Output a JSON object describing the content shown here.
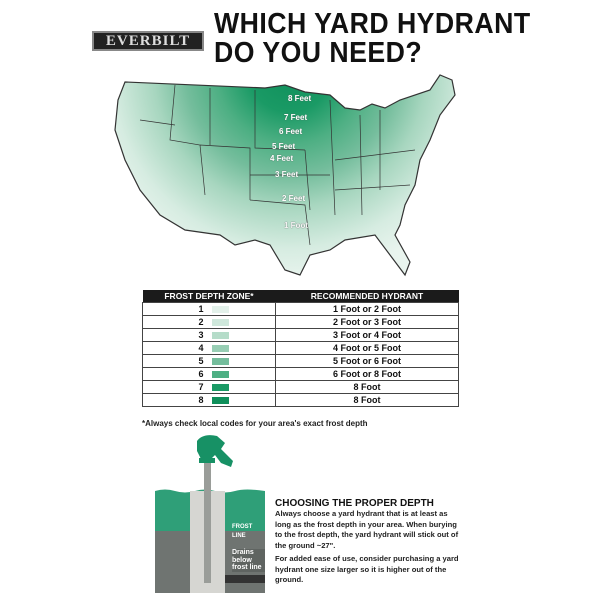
{
  "brand": {
    "logo_text": "EVERBILT"
  },
  "title": {
    "line1": "WHICH YARD HYDRANT",
    "line2": "DO YOU NEED?"
  },
  "map": {
    "labels": [
      "8 Feet",
      "7 Feet",
      "6 Feet",
      "5 Feet",
      "4 Feet",
      "3 Feet",
      "2 Feet",
      "1 Foot"
    ]
  },
  "table": {
    "headers": [
      "FROST DEPTH ZONE*",
      "RECOMMENDED HYDRANT"
    ],
    "rows": [
      {
        "zone": "1",
        "color": "#e3f1ea",
        "hydrant": "1 Foot or 2 Foot"
      },
      {
        "zone": "2",
        "color": "#cfe8dc",
        "hydrant": "2 Foot or 3 Foot"
      },
      {
        "zone": "3",
        "color": "#b5dcc9",
        "hydrant": "3 Foot or 4 Foot"
      },
      {
        "zone": "4",
        "color": "#97ceb4",
        "hydrant": "4 Foot or 5 Foot"
      },
      {
        "zone": "5",
        "color": "#74bd9c",
        "hydrant": "5 Foot or 6 Foot"
      },
      {
        "zone": "6",
        "color": "#4daf83",
        "hydrant": "6 Foot or 8 Foot"
      },
      {
        "zone": "7",
        "color": "#1a9a65",
        "hydrant": "8 Foot"
      },
      {
        "zone": "8",
        "color": "#0e8f5a",
        "hydrant": "8 Foot"
      }
    ],
    "note": "*Always check local codes for your area's exact frost depth"
  },
  "illustration": {
    "frost_label_1": "FROST",
    "frost_label_2": "LINE",
    "drain_label": "Drains below frost line"
  },
  "depth": {
    "heading": "CHOOSING THE PROPER DEPTH",
    "para1": "Always choose a yard hydrant that is at least as long as the frost depth in your area.  When burying to the frost depth, the yard hydrant will stick out of the ground ~27\".",
    "para2": "For added ease of use, consider purchasing a yard hydrant one size larger so it is higher out of the ground."
  }
}
